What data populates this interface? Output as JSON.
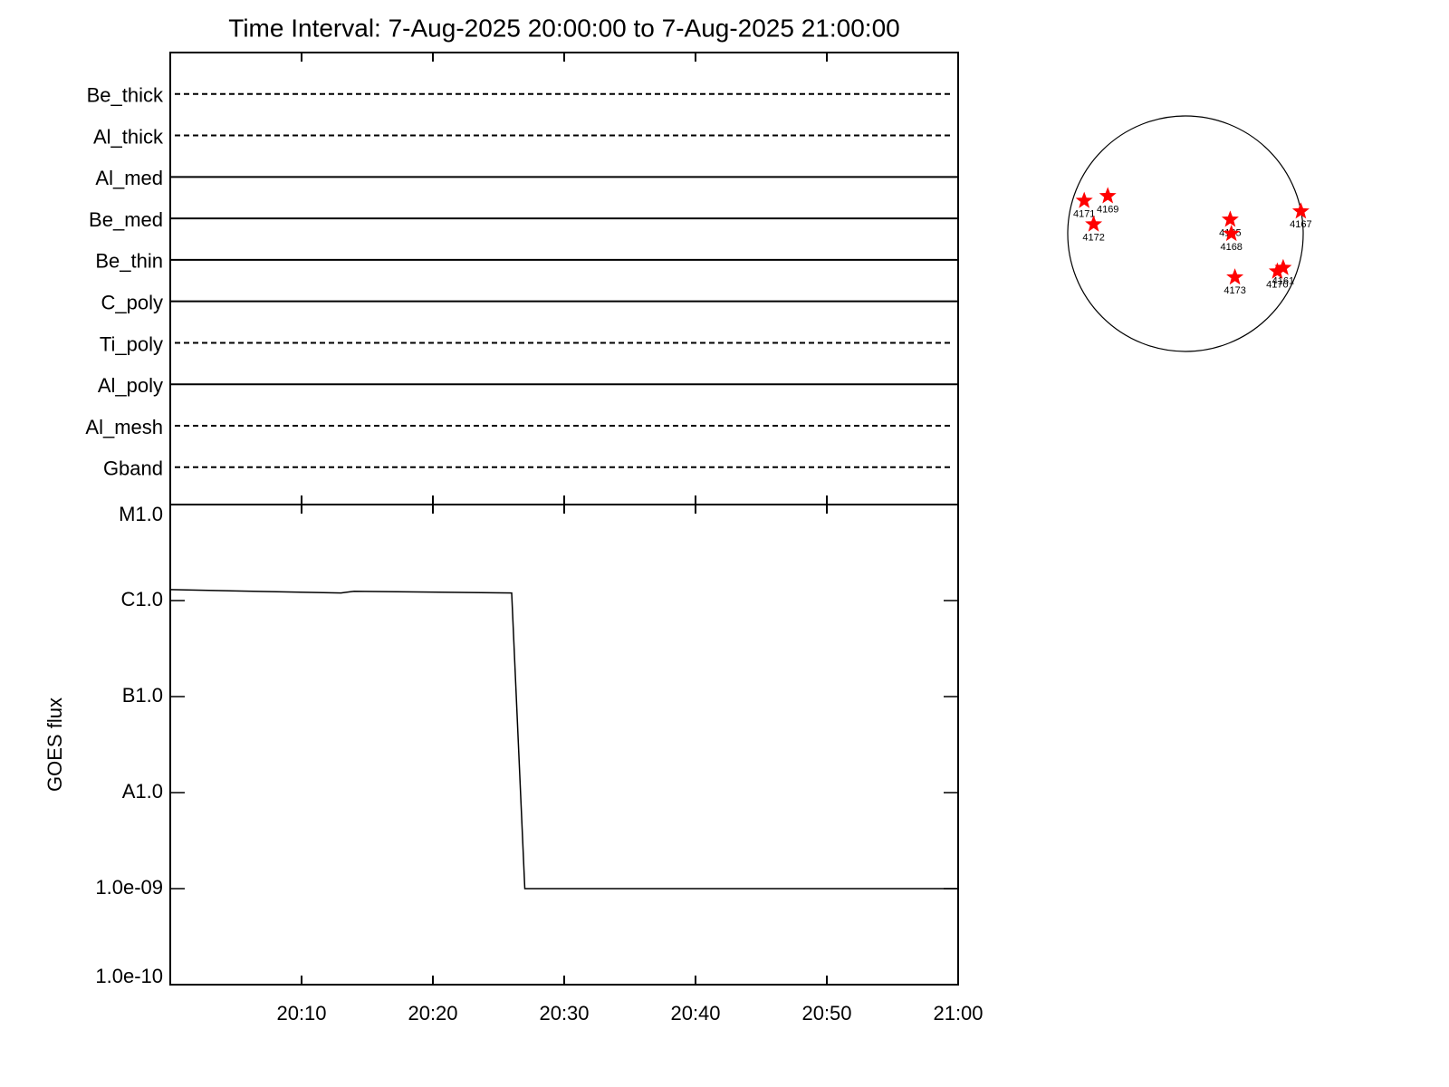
{
  "chart_data": [
    {
      "type": "timeline",
      "title": "Time Interval:  7-Aug-2025 20:00:00 to  7-Aug-2025 21:00:00",
      "categories": [
        "Be_thick",
        "Al_thick",
        "Al_med",
        "Be_med",
        "Be_thin",
        "C_poly",
        "Ti_poly",
        "Al_poly",
        "Al_mesh",
        "Gband"
      ],
      "line_styles": [
        "dashed",
        "dashed",
        "solid",
        "solid",
        "solid",
        "solid",
        "dashed",
        "solid",
        "dashed",
        "dashed"
      ],
      "xlim": [
        "20:00",
        "21:00"
      ],
      "xticks": [
        "20:10",
        "20:20",
        "20:30",
        "20:40",
        "20:50",
        "21:00"
      ]
    },
    {
      "type": "line",
      "ylabel": "GOES flux",
      "x": [
        "20:00",
        "20:13",
        "20:14",
        "20:26",
        "20:27",
        "21:00"
      ],
      "values": [
        1.3e-06,
        1.2e-06,
        1.25e-06,
        1.2e-06,
        1e-09,
        1e-09
      ],
      "color": "#000000",
      "log_scale": true,
      "xlim": [
        "20:00",
        "21:00"
      ],
      "xticks": [
        "20:10",
        "20:20",
        "20:30",
        "20:40",
        "20:50",
        "21:00"
      ],
      "ylim": [
        1e-10,
        1e-05
      ],
      "yticks": [
        {
          "value": 1e-10,
          "label": "1.0e-10"
        },
        {
          "value": 1e-09,
          "label": "1.0e-09"
        },
        {
          "value": 1e-08,
          "label": "A1.0"
        },
        {
          "value": 1e-07,
          "label": "B1.0"
        },
        {
          "value": 1e-06,
          "label": "C1.0"
        },
        {
          "value": 1e-05,
          "label": "M1.0"
        }
      ]
    },
    {
      "type": "disk",
      "labels": [
        "4171",
        "4169",
        "4172",
        "4165",
        "4168",
        "4167",
        "4173",
        "4170",
        "4161"
      ],
      "x": [
        -0.86,
        -0.66,
        -0.78,
        0.38,
        0.39,
        0.98,
        0.42,
        0.78,
        0.83
      ],
      "values": [
        0.28,
        0.32,
        0.08,
        0.12,
        0.0,
        0.19,
        -0.37,
        -0.32,
        -0.29
      ],
      "color": "#ff0000",
      "xlim": [
        -1,
        1
      ],
      "ylim": [
        -1,
        1
      ]
    }
  ]
}
